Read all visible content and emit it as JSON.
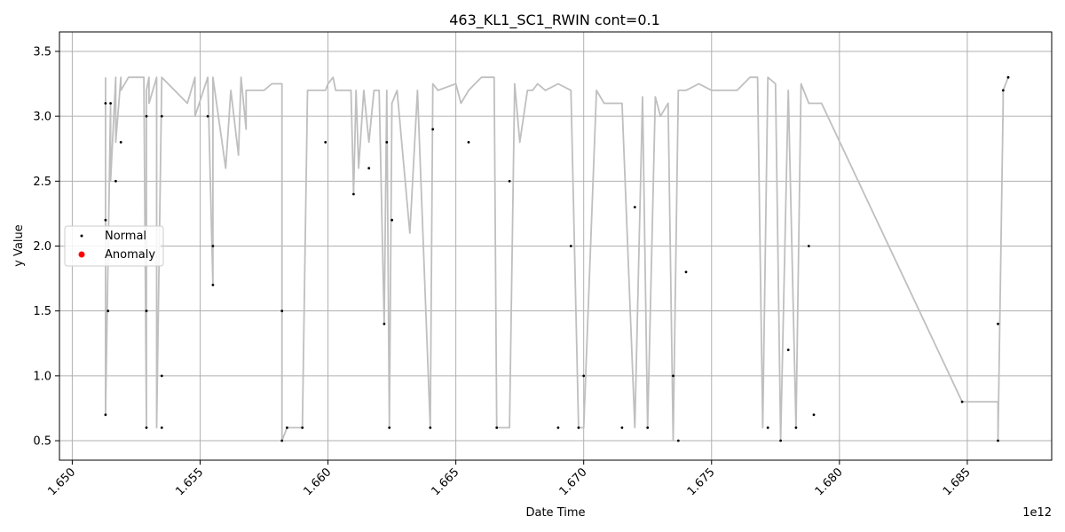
{
  "chart_data": {
    "type": "line",
    "title": "463_KL1_SC1_RWIN cont=0.1",
    "xlabel": "Date Time",
    "ylabel": "y Value",
    "x_offset_label": "1e12",
    "xlim": [
      1.6495,
      1.6883
    ],
    "ylim": [
      0.35,
      3.65
    ],
    "x_ticks": [
      1.65,
      1.655,
      1.66,
      1.665,
      1.67,
      1.675,
      1.68,
      1.685
    ],
    "x_tick_labels": [
      "1.650",
      "1.655",
      "1.660",
      "1.665",
      "1.670",
      "1.675",
      "1.680",
      "1.685"
    ],
    "y_ticks": [
      0.5,
      1.0,
      1.5,
      2.0,
      2.5,
      3.0,
      3.5
    ],
    "y_tick_labels": [
      "0.5",
      "1.0",
      "1.5",
      "2.0",
      "2.5",
      "3.0",
      "3.5"
    ],
    "grid": true,
    "legend_position": "center-left",
    "series": [
      {
        "name": "y Value",
        "kind": "line",
        "color": "#bfbfbf",
        "x": [
          1.6513,
          1.6513,
          1.6515,
          1.6515,
          1.6517,
          1.6517,
          1.6519,
          1.6519,
          1.6522,
          1.6528,
          1.6529,
          1.6529,
          1.653,
          1.653,
          1.6533,
          1.6533,
          1.6535,
          1.6535,
          1.6545,
          1.6548,
          1.6548,
          1.6553,
          1.6555,
          1.6555,
          1.656,
          1.6562,
          1.6565,
          1.6566,
          1.6568,
          1.6568,
          1.6575,
          1.6578,
          1.6582,
          1.6582,
          1.6584,
          1.659,
          1.6592,
          1.6599,
          1.66,
          1.6602,
          1.6603,
          1.6609,
          1.661,
          1.6611,
          1.6612,
          1.6614,
          1.6616,
          1.6618,
          1.662,
          1.6622,
          1.6623,
          1.6624,
          1.6625,
          1.6627,
          1.6632,
          1.6635,
          1.664,
          1.6641,
          1.6643,
          1.665,
          1.6652,
          1.6655,
          1.666,
          1.6665,
          1.6666,
          1.6671,
          1.6673,
          1.6675,
          1.6678,
          1.668,
          1.6682,
          1.6685,
          1.669,
          1.6695,
          1.6698,
          1.67,
          1.6705,
          1.6708,
          1.671,
          1.6715,
          1.672,
          1.6723,
          1.6725,
          1.6728,
          1.673,
          1.6733,
          1.6735,
          1.6737,
          1.674,
          1.6745,
          1.675,
          1.6755,
          1.676,
          1.6765,
          1.6768,
          1.677,
          1.6772,
          1.6775,
          1.6777,
          1.678,
          1.6783,
          1.6785,
          1.6788,
          1.679,
          1.6793,
          1.6848,
          1.6862,
          1.6862,
          1.6864,
          1.6864,
          1.6866
        ],
        "y": [
          3.3,
          0.7,
          3.1,
          2.5,
          3.3,
          2.8,
          3.3,
          3.2,
          3.3,
          3.3,
          0.6,
          3.2,
          3.3,
          3.1,
          3.3,
          0.6,
          3.3,
          3.3,
          3.1,
          3.3,
          3.0,
          3.3,
          1.7,
          3.3,
          2.6,
          3.2,
          2.7,
          3.3,
          2.9,
          3.2,
          3.2,
          3.25,
          3.25,
          0.5,
          0.6,
          0.6,
          3.2,
          3.2,
          3.25,
          3.3,
          3.2,
          3.2,
          2.4,
          3.2,
          2.6,
          3.2,
          2.8,
          3.2,
          3.2,
          1.4,
          3.2,
          0.6,
          3.1,
          3.2,
          2.1,
          3.2,
          0.6,
          3.25,
          3.2,
          3.25,
          3.1,
          3.2,
          3.3,
          3.3,
          0.6,
          0.6,
          3.25,
          2.8,
          3.2,
          3.2,
          3.25,
          3.2,
          3.25,
          3.2,
          0.6,
          0.6,
          3.2,
          3.1,
          3.1,
          3.1,
          0.6,
          3.15,
          0.6,
          3.15,
          3.0,
          3.1,
          0.5,
          3.2,
          3.2,
          3.25,
          3.2,
          3.2,
          3.2,
          3.3,
          3.3,
          0.6,
          3.3,
          3.25,
          0.5,
          3.2,
          0.6,
          3.25,
          3.1,
          3.1,
          3.1,
          0.8,
          0.8,
          0.5,
          3.1,
          3.2,
          3.3
        ]
      },
      {
        "name": "Normal",
        "kind": "scatter",
        "color": "#000000",
        "x": [
          1.6513,
          1.6513,
          1.6513,
          1.6514,
          1.6515,
          1.6517,
          1.6519,
          1.6529,
          1.6529,
          1.6529,
          1.6535,
          1.6535,
          1.6535,
          1.6535,
          1.6553,
          1.6555,
          1.6555,
          1.6582,
          1.6582,
          1.6584,
          1.659,
          1.6599,
          1.661,
          1.6616,
          1.6622,
          1.6623,
          1.6624,
          1.6625,
          1.664,
          1.6641,
          1.6655,
          1.6666,
          1.6671,
          1.669,
          1.6695,
          1.6698,
          1.67,
          1.6715,
          1.672,
          1.6725,
          1.6735,
          1.6737,
          1.674,
          1.6772,
          1.6777,
          1.678,
          1.6783,
          1.6788,
          1.679,
          1.6848,
          1.6862,
          1.6862,
          1.6864,
          1.6866
        ],
        "y": [
          3.1,
          2.2,
          0.7,
          1.5,
          3.1,
          2.5,
          2.8,
          3.0,
          1.5,
          0.6,
          3.0,
          2.0,
          1.0,
          0.6,
          3.0,
          1.7,
          2.0,
          1.5,
          0.5,
          0.6,
          0.6,
          2.8,
          2.4,
          2.6,
          1.4,
          2.8,
          0.6,
          2.2,
          0.6,
          2.9,
          2.8,
          0.6,
          2.5,
          0.6,
          2.0,
          0.6,
          1.0,
          0.6,
          2.3,
          0.6,
          1.0,
          0.5,
          1.8,
          0.6,
          0.5,
          1.2,
          0.6,
          2.0,
          0.7,
          0.8,
          0.5,
          1.4,
          3.2,
          3.3
        ]
      },
      {
        "name": "Anomaly",
        "kind": "scatter",
        "color": "#ff0000",
        "x": [],
        "y": []
      }
    ],
    "legend": [
      {
        "label": "Normal",
        "color": "#000000"
      },
      {
        "label": "Anomaly",
        "color": "#ff0000"
      }
    ]
  }
}
